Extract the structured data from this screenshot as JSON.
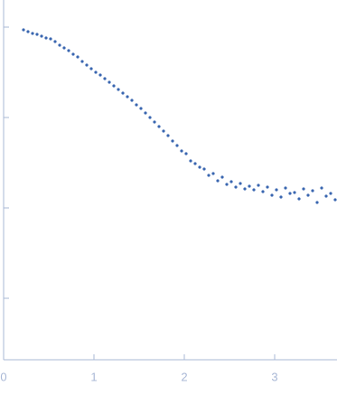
{
  "chart_data": {
    "type": "scatter",
    "x": [
      0.22,
      0.27,
      0.32,
      0.37,
      0.42,
      0.47,
      0.52,
      0.57,
      0.62,
      0.67,
      0.72,
      0.77,
      0.82,
      0.87,
      0.92,
      0.97,
      1.02,
      1.07,
      1.12,
      1.17,
      1.22,
      1.27,
      1.32,
      1.37,
      1.42,
      1.47,
      1.52,
      1.57,
      1.62,
      1.67,
      1.72,
      1.77,
      1.82,
      1.87,
      1.92,
      1.97,
      2.02,
      2.07,
      2.12,
      2.17,
      2.22,
      2.27,
      2.32,
      2.37,
      2.42,
      2.47,
      2.52,
      2.57,
      2.62,
      2.67,
      2.72,
      2.77,
      2.82,
      2.87,
      2.92,
      2.97,
      3.02,
      3.07,
      3.12,
      3.17,
      3.22,
      3.27,
      3.32,
      3.37,
      3.42,
      3.47,
      3.52,
      3.57,
      3.62,
      3.67
    ],
    "values": [
      -0.03,
      -0.05,
      -0.07,
      -0.08,
      -0.1,
      -0.12,
      -0.13,
      -0.16,
      -0.2,
      -0.23,
      -0.26,
      -0.3,
      -0.33,
      -0.38,
      -0.42,
      -0.46,
      -0.5,
      -0.53,
      -0.57,
      -0.61,
      -0.65,
      -0.69,
      -0.73,
      -0.77,
      -0.81,
      -0.86,
      -0.9,
      -0.95,
      -1.0,
      -1.05,
      -1.1,
      -1.15,
      -1.2,
      -1.26,
      -1.31,
      -1.37,
      -1.4,
      -1.48,
      -1.51,
      -1.55,
      -1.57,
      -1.64,
      -1.62,
      -1.7,
      -1.66,
      -1.74,
      -1.71,
      -1.77,
      -1.73,
      -1.79,
      -1.76,
      -1.8,
      -1.75,
      -1.82,
      -1.77,
      -1.86,
      -1.8,
      -1.88,
      -1.78,
      -1.84,
      -1.83,
      -1.9,
      -1.79,
      -1.86,
      -1.81,
      -1.94,
      -1.78,
      -1.87,
      -1.84,
      -1.91
    ],
    "color": "#3a66b0",
    "xlim": [
      0,
      3.69
    ],
    "ylim": [
      -3.68,
      0.3
    ],
    "xticks": [
      0,
      1,
      2,
      3
    ],
    "yticks": [
      -3,
      -2,
      -1,
      0
    ]
  }
}
